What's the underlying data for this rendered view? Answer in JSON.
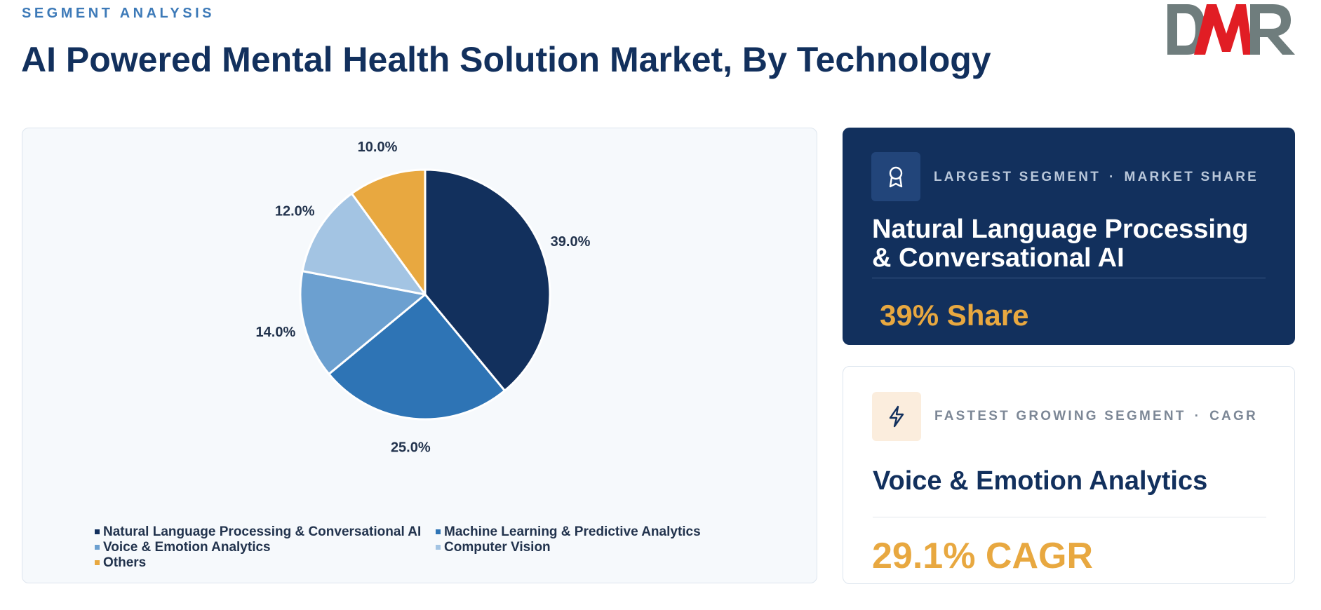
{
  "header": {
    "eyebrow": "SEGMENT ANALYSIS",
    "title": "AI Powered Mental Health Solution Market, By Technology",
    "logo_text": "DMR"
  },
  "colors": {
    "navy": "#12305d",
    "accent_orange": "#e8a840",
    "logo_grey": "#6f7d7d",
    "logo_red": "#e11d24"
  },
  "chart_data": {
    "type": "pie",
    "slices": [
      {
        "label": "Natural Language Processing & Conversational AI",
        "value": 39.0,
        "display": "39.0%",
        "color": "#12305d"
      },
      {
        "label": "Machine Learning & Predictive Analytics",
        "value": 25.0,
        "display": "25.0%",
        "color": "#2e74b5"
      },
      {
        "label": "Voice & Emotion Analytics",
        "value": 14.0,
        "display": "14.0%",
        "color": "#6ca0d0"
      },
      {
        "label": "Computer Vision",
        "value": 12.0,
        "display": "12.0%",
        "color": "#a3c4e3"
      },
      {
        "label": "Others",
        "value": 10.0,
        "display": "10.0%",
        "color": "#e8a840"
      }
    ],
    "legend_position": "bottom"
  },
  "largest": {
    "icon": "award-icon",
    "label": "LARGEST SEGMENT",
    "label2": "MARKET SHARE",
    "separator": "·",
    "name": "Natural Language Processing & Conversational AI",
    "value": "39% Share"
  },
  "fastest": {
    "icon": "lightning-icon",
    "label": "FASTEST GROWING SEGMENT",
    "label2": "CAGR",
    "separator": "·",
    "name": "Voice & Emotion Analytics",
    "value": "29.1% CAGR"
  }
}
